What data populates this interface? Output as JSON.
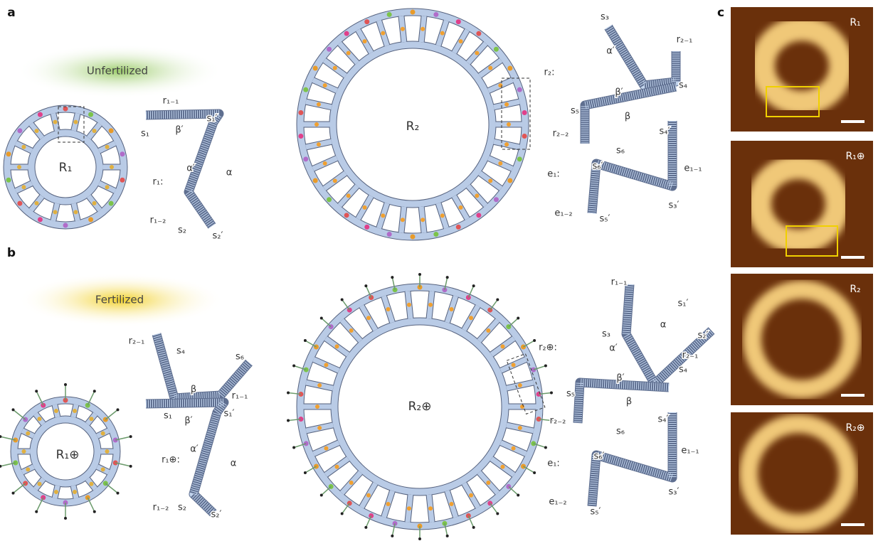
{
  "panel_a": {
    "label": "a",
    "condition": "Unfertilized",
    "ring_1": "R₁",
    "ring_2": "R₂",
    "strand_r1": [
      "r₁₋₁",
      "s₁′",
      "s₁",
      "β′",
      "α′",
      "α",
      "r₁:",
      "r₁₋₂",
      "s₂",
      "s₂′"
    ],
    "strand_r2": [
      "s₃",
      "α′",
      "r₂₋₁",
      "r₂:",
      "β′",
      "s₄",
      "β",
      "s₅",
      "r₂₋₂",
      "s₆",
      "s₄′",
      "e₁₋₁",
      "e₁:",
      "s₆′",
      "s₃′",
      "e₁₋₂",
      "s₅′"
    ]
  },
  "panel_b": {
    "label": "b",
    "condition": "Fertilized",
    "ring_1": "R₁⊕",
    "ring_2": "R₂⊕",
    "strand_r1": [
      "r₂₋₁",
      "s₄",
      "s₆",
      "β",
      "r₁₋₁",
      "s₁",
      "β′",
      "s₁′",
      "r₁⊕:",
      "α′",
      "α",
      "r₁₋₂",
      "s₂",
      "s₂′"
    ],
    "strand_r2": [
      "r₁₋₁",
      "s₁′",
      "α",
      "s₃",
      "s₂′",
      "r₂⊕:",
      "α′",
      "r₂₋₁",
      "β′",
      "s₄",
      "β",
      "s₅",
      "r₂₋₂",
      "s₆",
      "s₄′",
      "e₁₋₁",
      "e₁:",
      "s₆′",
      "s₃′",
      "e₁₋₂",
      "s₅′"
    ]
  },
  "panel_c": {
    "label": "c",
    "images": [
      "R₁",
      "R₁⊕",
      "R₂",
      "R₂⊕"
    ]
  }
}
